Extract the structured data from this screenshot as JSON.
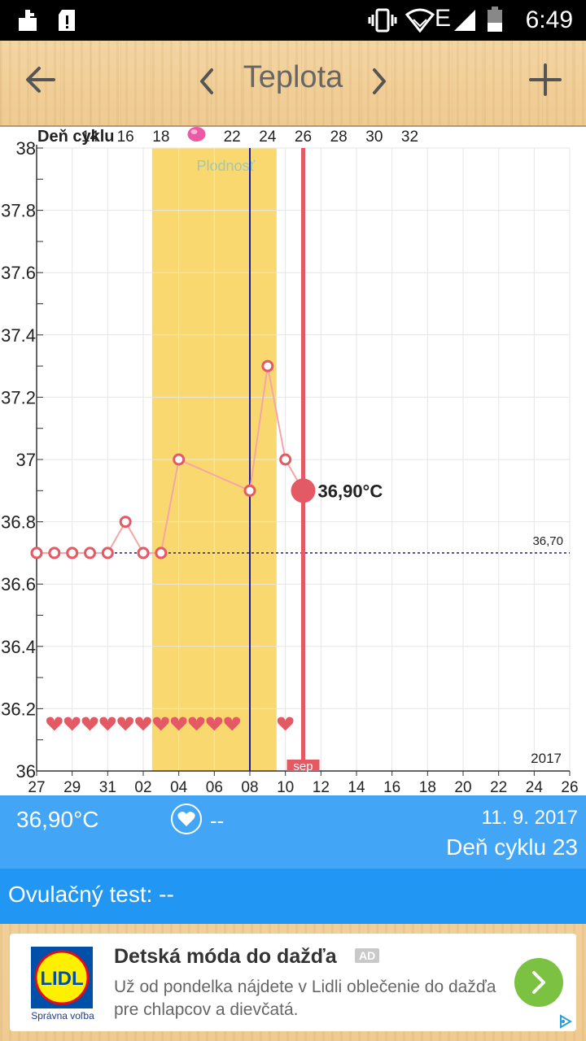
{
  "status_bar": {
    "time": "6:49",
    "icons": [
      "notification-icon",
      "sd-card-icon",
      "vibrate-icon",
      "wifi-icon",
      "network-e-icon",
      "signal-icon",
      "battery-icon"
    ]
  },
  "toolbar": {
    "title": "Teplota",
    "back_icon": "arrow-left-icon",
    "prev_icon": "chevron-left-icon",
    "next_icon": "chevron-right-icon",
    "add_icon": "plus-icon"
  },
  "chart_data": {
    "type": "line",
    "title": "",
    "cycle_axis_label": "Deň cyklu",
    "cycle_ticks": [
      "14",
      "16",
      "18",
      "",
      "22",
      "24",
      "26",
      "28",
      "30",
      "32"
    ],
    "fertile_label": "Plodnosť",
    "year_label": "2017",
    "month_marker": "sep",
    "x_tick_labels": [
      "27",
      "29",
      "31",
      "02",
      "04",
      "06",
      "08",
      "10",
      "12",
      "14",
      "16",
      "18",
      "20",
      "22",
      "24",
      "26"
    ],
    "y_tick_labels": [
      "38",
      "37.8",
      "37.6",
      "37.4",
      "37.2",
      "37",
      "36.8",
      "36.6",
      "36.4",
      "36.2",
      "36"
    ],
    "ylim": [
      36,
      38
    ],
    "xlim": [
      "2017-08-27",
      "2017-09-26"
    ],
    "fertile_window": [
      "2017-09-03",
      "2017-09-09"
    ],
    "ovulation_date": "2017-09-08",
    "selected_date": "2017-09-11",
    "selected_label": "36,90°C",
    "coverline": 36.7,
    "coverline_label": "36,70",
    "series": [
      {
        "x": [
          "2017-08-27",
          "2017-08-28",
          "2017-08-29",
          "2017-08-30",
          "2017-08-31",
          "2017-09-01",
          "2017-09-02",
          "2017-09-03",
          "2017-09-04",
          "2017-09-08",
          "2017-09-09",
          "2017-09-10",
          "2017-09-11"
        ],
        "values": [
          36.7,
          36.7,
          36.7,
          36.7,
          36.7,
          36.8,
          36.7,
          36.7,
          37.0,
          36.9,
          37.3,
          37.0,
          36.9
        ]
      }
    ],
    "intercourse_days": [
      "2017-08-28",
      "2017-08-29",
      "2017-08-30",
      "2017-08-31",
      "2017-09-01",
      "2017-09-02",
      "2017-09-03",
      "2017-09-04",
      "2017-09-05",
      "2017-09-06",
      "2017-09-07",
      "2017-09-10"
    ],
    "colors": {
      "fertile": "#f9d96f",
      "line": "#f4a6a6",
      "point": "#e35a64",
      "ovulation": "#1a1aa6",
      "selected": "#e35a64",
      "coverline": "#1a1aa6"
    }
  },
  "info": {
    "temperature": "36,90°C",
    "sex_icon": "heart-icon",
    "sex_value": "--",
    "date": "11. 9. 2017",
    "cycle_day": "Deň cyklu 23"
  },
  "ovulation_test": {
    "text": "Ovulačný test: --"
  },
  "ad": {
    "logo_text": "LIDL",
    "logo_caption": "Správna voľba",
    "headline": "Detská móda do dažďa",
    "tag": "AD",
    "body": "Už od pondelka nájdete v Lidli oblečenie do dažďa pre chlapcov a dievčatá.",
    "go_icon": "arrow-right-icon",
    "adchoices_icon": "adchoices-icon"
  }
}
